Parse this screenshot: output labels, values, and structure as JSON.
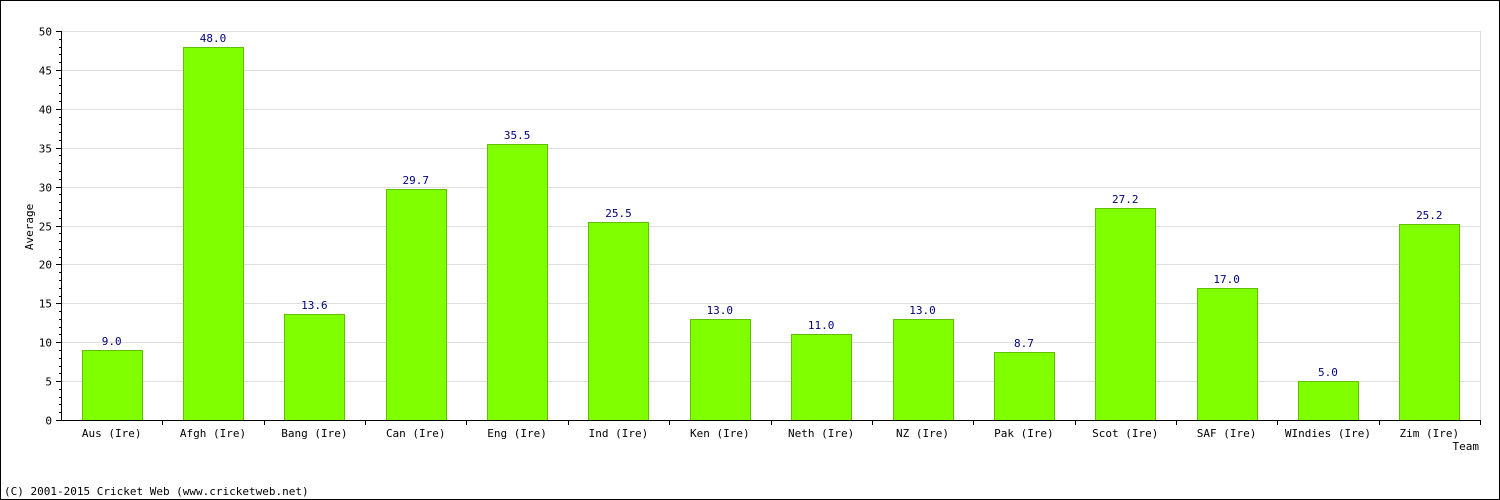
{
  "chart_data": {
    "type": "bar",
    "title": "",
    "xlabel": "Team",
    "ylabel": "Average",
    "ylim": [
      0,
      50
    ],
    "ytick_step": 5,
    "grid": true,
    "legend": "none",
    "categories": [
      "Aus (Ire)",
      "Afgh (Ire)",
      "Bang (Ire)",
      "Can (Ire)",
      "Eng (Ire)",
      "Ind (Ire)",
      "Ken (Ire)",
      "Neth (Ire)",
      "NZ (Ire)",
      "Pak (Ire)",
      "Scot (Ire)",
      "SAF (Ire)",
      "WIndies (Ire)",
      "Zim (Ire)"
    ],
    "values": [
      9.0,
      48.0,
      13.6,
      29.7,
      35.5,
      25.5,
      13.0,
      11.0,
      13.0,
      8.7,
      27.2,
      17.0,
      5.0,
      25.2
    ],
    "value_labels": [
      "9.0",
      "48.0",
      "13.6",
      "29.7",
      "35.5",
      "25.5",
      "13.0",
      "11.0",
      "13.0",
      "8.7",
      "27.2",
      "17.0",
      "5.0",
      "25.2"
    ],
    "bar_color": "#80ff00",
    "value_label_color": "#000080"
  },
  "footer": {
    "credit": "(C) 2001-2015 Cricket Web (www.cricketweb.net)"
  }
}
